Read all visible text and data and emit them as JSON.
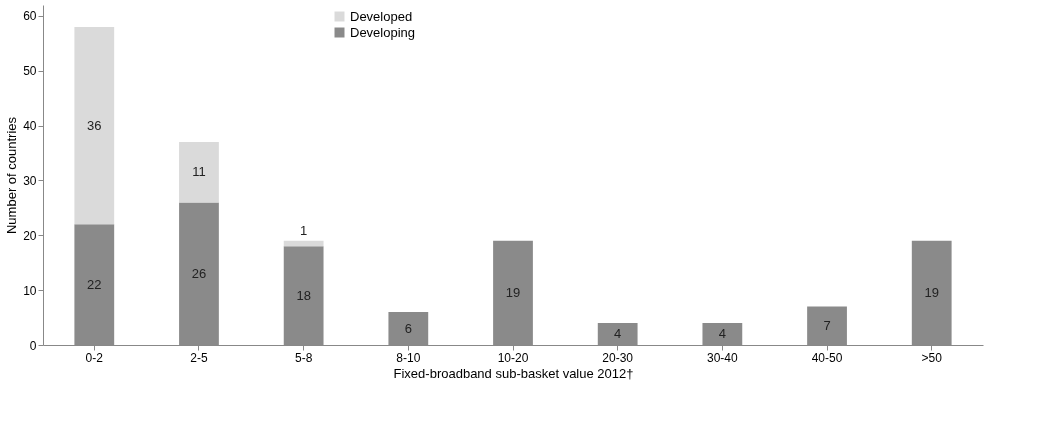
{
  "chart_data": {
    "type": "bar",
    "stacked": true,
    "xlabel": "Fixed-broadband sub-basket value 2012†",
    "ylabel": "Number of countries",
    "categories": [
      "0-2",
      "2-5",
      "5-8",
      "8-10",
      "10-20",
      "20-30",
      "30-40",
      "40-50",
      ">50"
    ],
    "series": [
      {
        "name": "Developing",
        "color": "#8a8a8a",
        "values": [
          22,
          26,
          18,
          6,
          19,
          4,
          4,
          7,
          19
        ],
        "value_labels": [
          "22",
          "26",
          "18",
          "6",
          "19",
          "4",
          "4",
          "7",
          "19"
        ]
      },
      {
        "name": "Developed",
        "color": "#dadada",
        "values": [
          36,
          11,
          1,
          null,
          null,
          null,
          null,
          null,
          null
        ],
        "value_labels": [
          "36",
          "11",
          "1",
          null,
          null,
          null,
          null,
          null,
          null
        ]
      }
    ],
    "ylim": [
      0,
      62
    ],
    "yticks": [
      0,
      10,
      20,
      30,
      40,
      50,
      60
    ],
    "grid": false,
    "legend": "top left"
  }
}
